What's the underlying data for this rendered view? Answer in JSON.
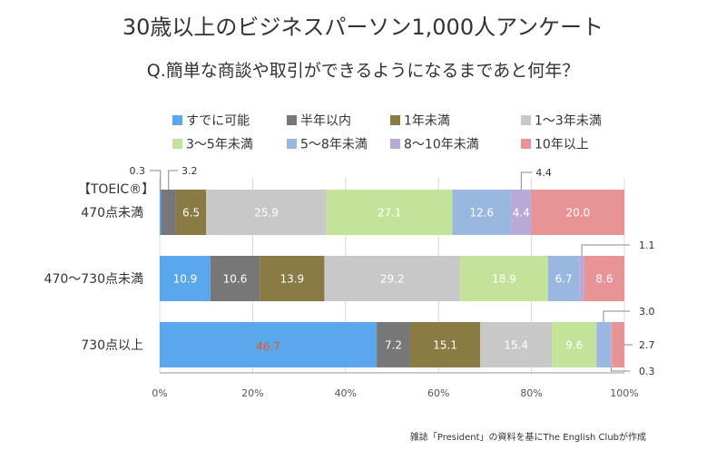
{
  "title": "30歳以上のビジネスパーソン1,000人アンケート",
  "question": "Q.簡単な商談や取引ができるようになるまであと何年？",
  "source_note": "雑誌「President」の資料を基にThe English Clubが作成",
  "chart_data": {
    "type": "bar",
    "orientation": "horizontal",
    "stacked": true,
    "percent": true,
    "group_header": "【TOEIC®】",
    "categories": [
      "470点未満",
      "470〜730点未満",
      "730点以上"
    ],
    "series": [
      {
        "name": "すでに可能",
        "color": "#5aa7ee",
        "values": [
          0.3,
          10.9,
          46.7
        ]
      },
      {
        "name": "半年以内",
        "color": "#777777",
        "values": [
          3.2,
          10.6,
          7.2
        ]
      },
      {
        "name": "1年未満",
        "color": "#8a7b45",
        "values": [
          6.5,
          13.9,
          15.1
        ]
      },
      {
        "name": "1〜3年未満",
        "color": "#c8c8c8",
        "values": [
          25.9,
          29.2,
          15.4
        ]
      },
      {
        "name": "3〜5年未満",
        "color": "#c4e39a",
        "values": [
          27.1,
          18.9,
          9.6
        ]
      },
      {
        "name": "5〜8年未満",
        "color": "#9ab8df",
        "values": [
          12.6,
          6.7,
          3.0
        ]
      },
      {
        "name": "8〜10年未満",
        "color": "#b8a9d6",
        "values": [
          4.4,
          1.1,
          0.3
        ]
      },
      {
        "name": "10年以上",
        "color": "#e89497",
        "values": [
          20.0,
          8.6,
          2.7
        ]
      }
    ],
    "highlight": {
      "category": 2,
      "series": 0,
      "color": "#e8591a"
    },
    "x_ticks": [
      "0%",
      "20%",
      "40%",
      "60%",
      "80%",
      "100%"
    ],
    "xlim": [
      0,
      100
    ],
    "grid": true,
    "legend_position": "top"
  }
}
